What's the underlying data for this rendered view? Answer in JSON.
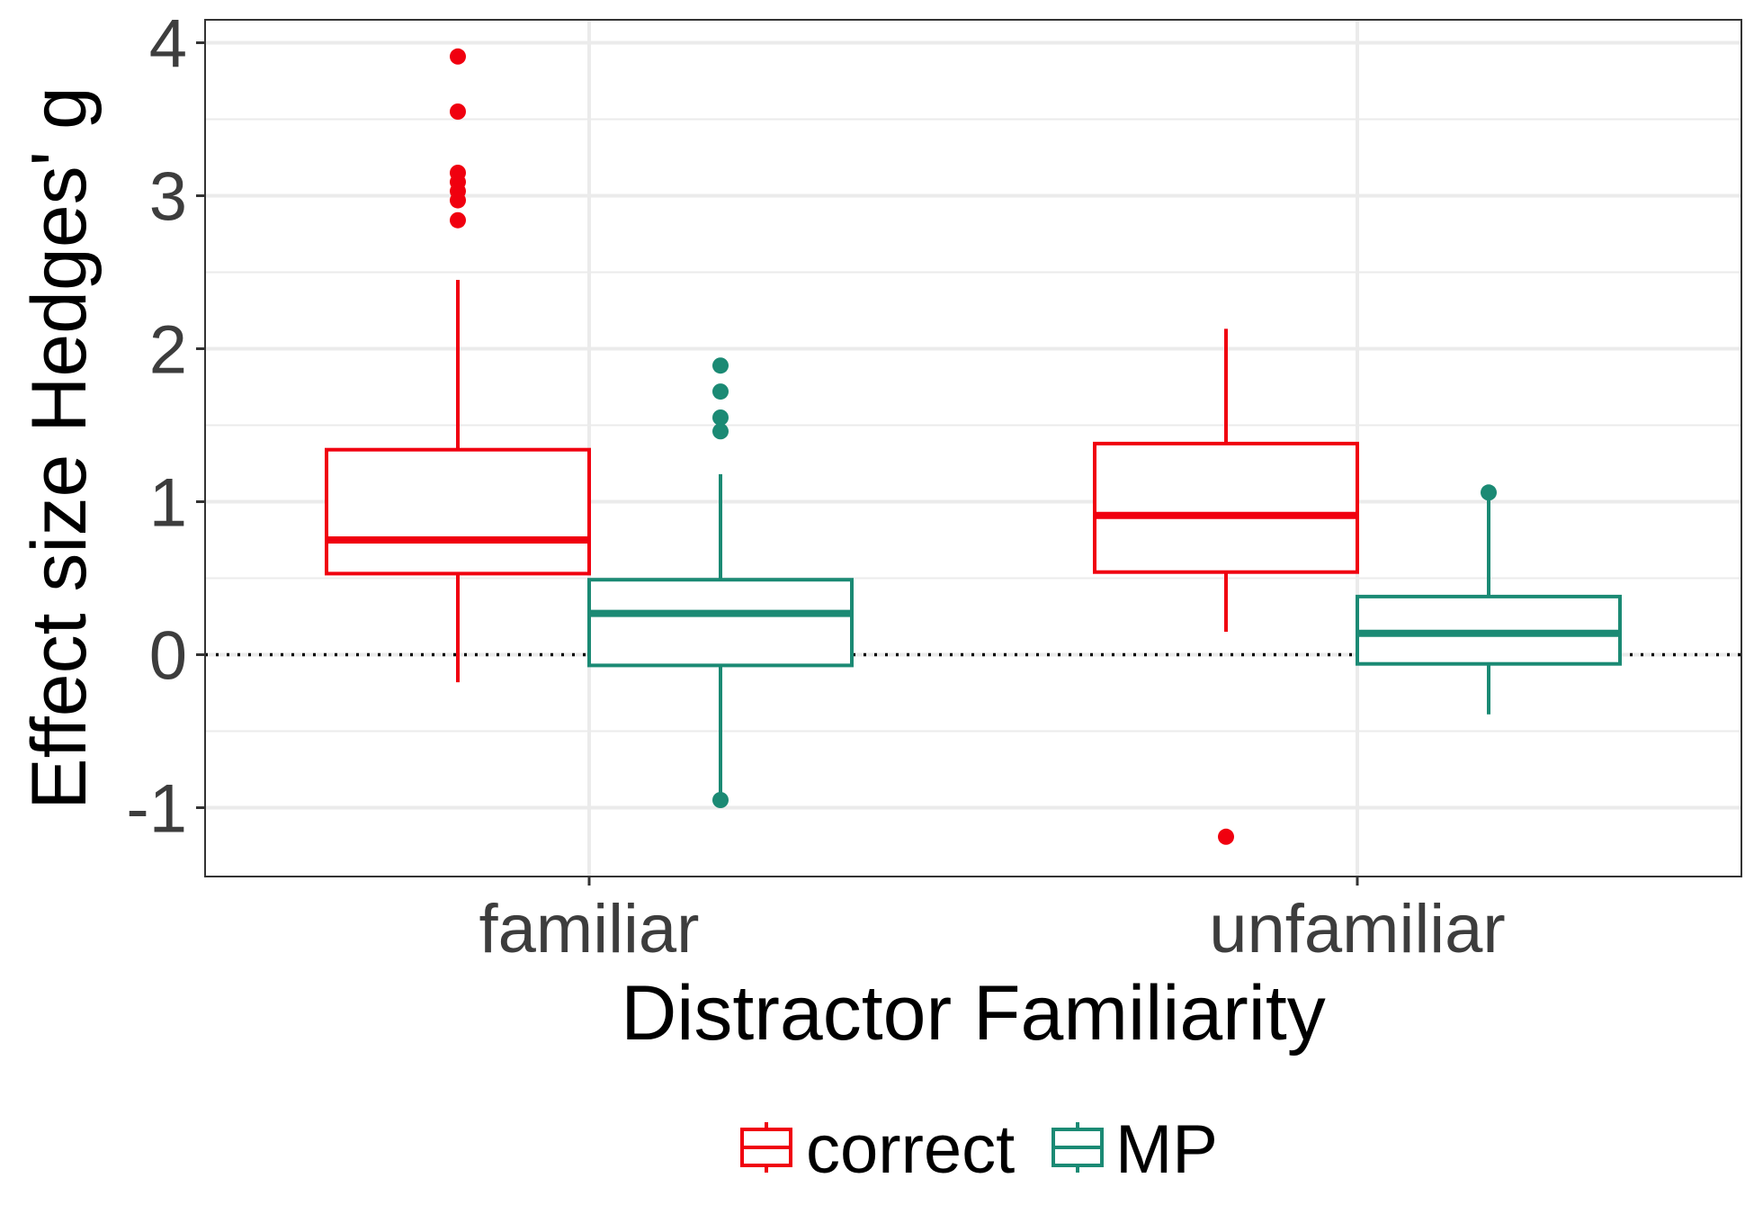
{
  "chart_data": {
    "type": "boxplot",
    "xlabel": "Distractor Familiarity",
    "ylabel": "Effect size Hedges' g",
    "ylim": [
      -1.45,
      4.15
    ],
    "yticks": [
      -1,
      0,
      1,
      2,
      3,
      4
    ],
    "categories": [
      "familiar",
      "unfamiliar"
    ],
    "reference_line": {
      "y": 0,
      "style": "dotted"
    },
    "grid": true,
    "legend_position": "bottom",
    "series": [
      {
        "name": "correct",
        "color": "#F0000F",
        "boxes": [
          {
            "category": "familiar",
            "whisker_low": -0.18,
            "q1": 0.53,
            "median": 0.75,
            "q3": 1.34,
            "whisker_high": 2.45,
            "outliers": [
              3.91,
              3.55,
              3.15,
              3.09,
              3.03,
              2.97,
              2.84
            ]
          },
          {
            "category": "unfamiliar",
            "whisker_low": 0.15,
            "q1": 0.54,
            "median": 0.91,
            "q3": 1.38,
            "whisker_high": 2.13,
            "outliers": [
              -1.19
            ]
          }
        ]
      },
      {
        "name": "MP",
        "color": "#1B8A74",
        "boxes": [
          {
            "category": "familiar",
            "whisker_low": -0.93,
            "q1": -0.07,
            "median": 0.27,
            "q3": 0.49,
            "whisker_high": 1.18,
            "outliers": [
              1.89,
              1.72,
              1.55,
              1.46,
              -0.95
            ]
          },
          {
            "category": "unfamiliar",
            "whisker_low": -0.39,
            "q1": -0.06,
            "median": 0.14,
            "q3": 0.38,
            "whisker_high": 1.06,
            "outliers": [
              1.06
            ]
          }
        ]
      }
    ]
  }
}
